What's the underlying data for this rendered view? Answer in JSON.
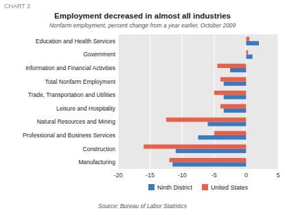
{
  "chart_data": {
    "type": "bar",
    "orientation": "horizontal",
    "title": "Employment decreased in almost all industries",
    "subtitle": "Nonfarm employment, percent change from a year earlier, October 2009",
    "annotations": [
      "CHART 2",
      "Source: Bureau of Labor Statistics"
    ],
    "categories": [
      "Education and Health Services",
      "Government",
      "Information and Financial Activities",
      "Total Nonfarm Employment",
      "Trade, Transportation and Utilities",
      "Leisure and Hospitality",
      "Natural Resources and Mining",
      "Professional and Business Services",
      "Construction",
      "Manufacturing"
    ],
    "series": [
      {
        "name": "Ninth District",
        "color": "#3a7bbf",
        "values": [
          2.0,
          1.0,
          -2.5,
          -3.5,
          -3.5,
          -3.5,
          -6.0,
          -7.5,
          -11.0,
          -11.5
        ]
      },
      {
        "name": "United States",
        "color": "#e8604a",
        "values": [
          0.5,
          0.3,
          -4.5,
          -4.0,
          -5.0,
          -4.0,
          -12.5,
          -5.0,
          -16.0,
          -12.0
        ]
      }
    ],
    "xlim": [
      -20,
      5
    ],
    "xticks": [
      -20,
      -15,
      -10,
      -5,
      0,
      5
    ],
    "grid": true,
    "legend": "bottom"
  }
}
